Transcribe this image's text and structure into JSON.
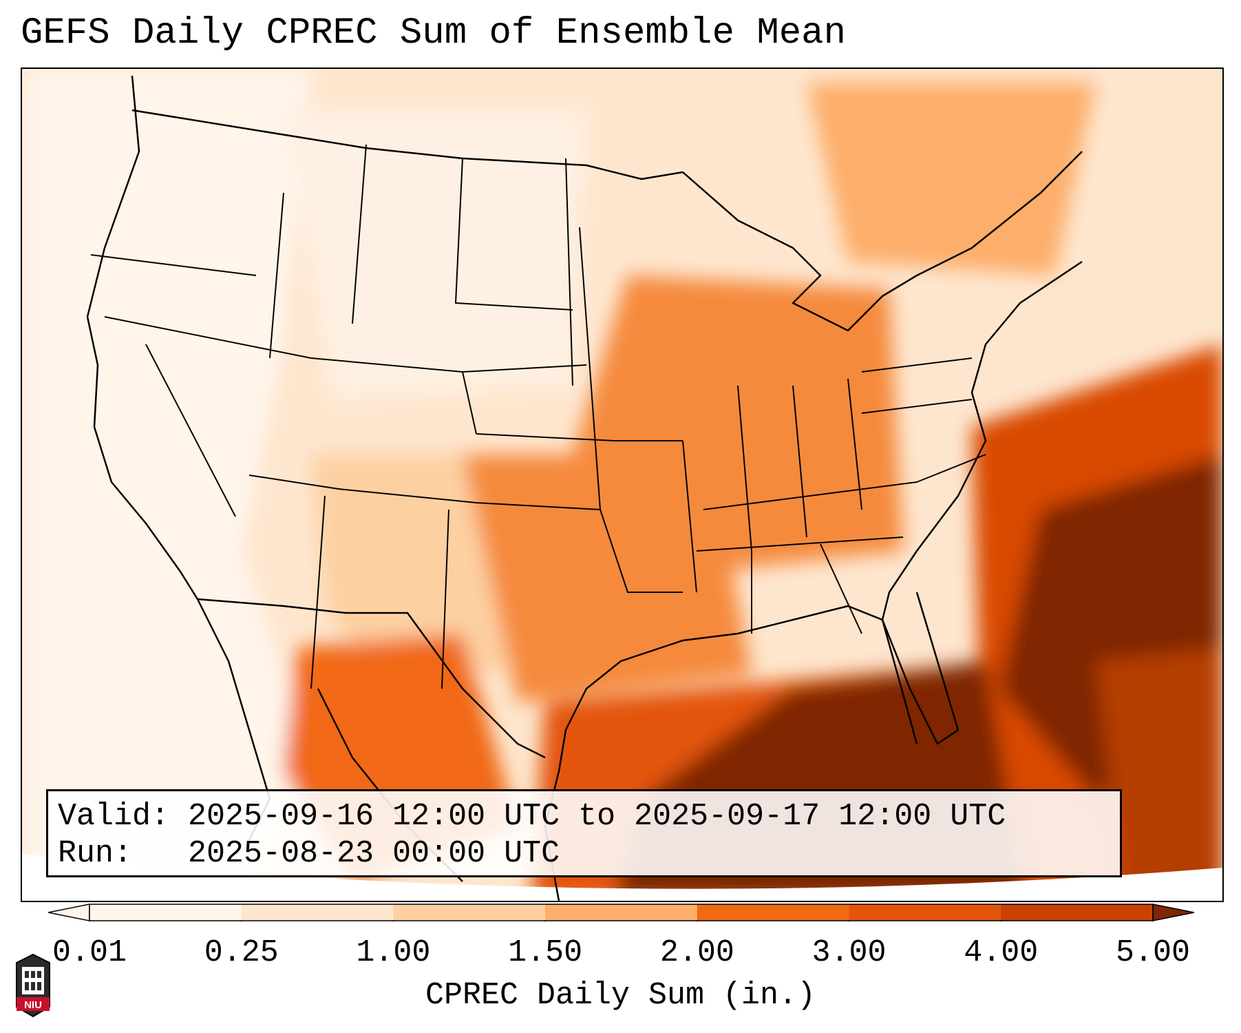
{
  "title": "GEFS Daily CPREC Sum of Ensemble Mean",
  "info": {
    "valid_label": "Valid:",
    "valid_value": "2025-09-16 12:00 UTC to 2025-09-17 12:00 UTC",
    "run_label": "Run:",
    "run_value": "2025-08-23 00:00 UTC"
  },
  "colorbar": {
    "label": "CPREC Daily Sum (in.)",
    "ticks": [
      "0.01",
      "0.25",
      "1.00",
      "1.50",
      "2.00",
      "3.00",
      "4.00",
      "5.00"
    ],
    "colors": [
      "#fff5eb",
      "#fee6ce",
      "#fdd0a2",
      "#fdae6b",
      "#f16913",
      "#e3540a",
      "#c94203",
      "#7f2704"
    ],
    "extend": "both"
  },
  "logo": {
    "text": "NIU"
  }
}
